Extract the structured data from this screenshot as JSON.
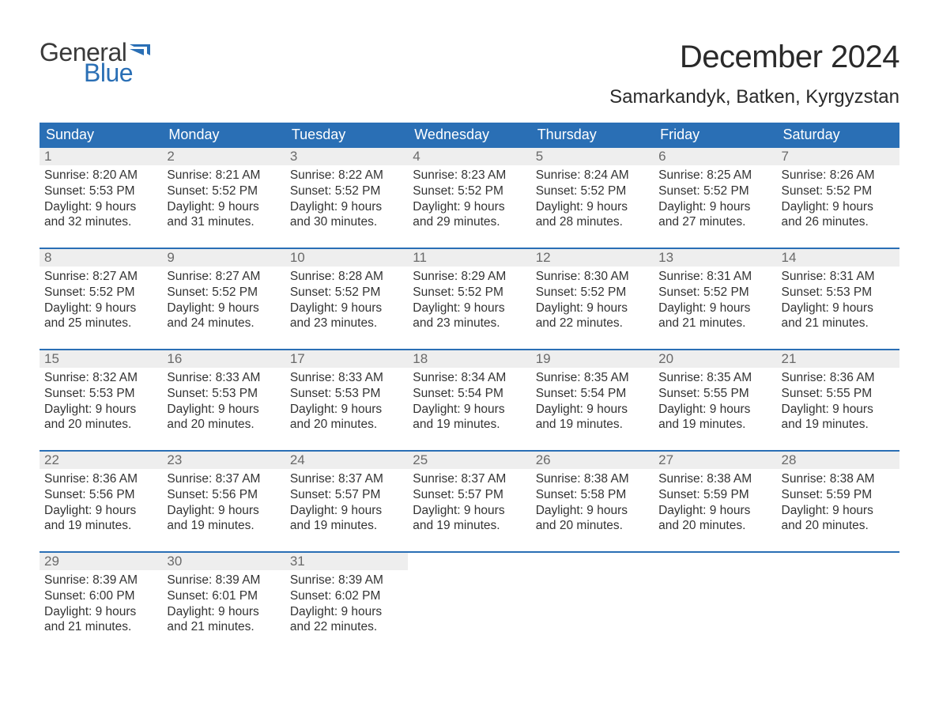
{
  "brand": {
    "general": "General",
    "blue": "Blue",
    "flag_color": "#2a6fb5"
  },
  "title": "December 2024",
  "location": "Samarkandyk, Batken, Kyrgyzstan",
  "colors": {
    "header_bg": "#2a6fb5",
    "header_text": "#ffffff",
    "daynum_bg": "#eeeeee",
    "daynum_text": "#6a6a6a",
    "body_text": "#333333",
    "week_border": "#2a6fb5",
    "page_bg": "#ffffff"
  },
  "typography": {
    "title_fontsize": 40,
    "location_fontsize": 24,
    "weekday_fontsize": 18,
    "daynum_fontsize": 17,
    "body_fontsize": 15.5,
    "font_family": "Arial"
  },
  "weekdays": [
    "Sunday",
    "Monday",
    "Tuesday",
    "Wednesday",
    "Thursday",
    "Friday",
    "Saturday"
  ],
  "weeks": [
    [
      {
        "n": "1",
        "sunrise": "Sunrise: 8:20 AM",
        "sunset": "Sunset: 5:53 PM",
        "day1": "Daylight: 9 hours",
        "day2": "and 32 minutes."
      },
      {
        "n": "2",
        "sunrise": "Sunrise: 8:21 AM",
        "sunset": "Sunset: 5:52 PM",
        "day1": "Daylight: 9 hours",
        "day2": "and 31 minutes."
      },
      {
        "n": "3",
        "sunrise": "Sunrise: 8:22 AM",
        "sunset": "Sunset: 5:52 PM",
        "day1": "Daylight: 9 hours",
        "day2": "and 30 minutes."
      },
      {
        "n": "4",
        "sunrise": "Sunrise: 8:23 AM",
        "sunset": "Sunset: 5:52 PM",
        "day1": "Daylight: 9 hours",
        "day2": "and 29 minutes."
      },
      {
        "n": "5",
        "sunrise": "Sunrise: 8:24 AM",
        "sunset": "Sunset: 5:52 PM",
        "day1": "Daylight: 9 hours",
        "day2": "and 28 minutes."
      },
      {
        "n": "6",
        "sunrise": "Sunrise: 8:25 AM",
        "sunset": "Sunset: 5:52 PM",
        "day1": "Daylight: 9 hours",
        "day2": "and 27 minutes."
      },
      {
        "n": "7",
        "sunrise": "Sunrise: 8:26 AM",
        "sunset": "Sunset: 5:52 PM",
        "day1": "Daylight: 9 hours",
        "day2": "and 26 minutes."
      }
    ],
    [
      {
        "n": "8",
        "sunrise": "Sunrise: 8:27 AM",
        "sunset": "Sunset: 5:52 PM",
        "day1": "Daylight: 9 hours",
        "day2": "and 25 minutes."
      },
      {
        "n": "9",
        "sunrise": "Sunrise: 8:27 AM",
        "sunset": "Sunset: 5:52 PM",
        "day1": "Daylight: 9 hours",
        "day2": "and 24 minutes."
      },
      {
        "n": "10",
        "sunrise": "Sunrise: 8:28 AM",
        "sunset": "Sunset: 5:52 PM",
        "day1": "Daylight: 9 hours",
        "day2": "and 23 minutes."
      },
      {
        "n": "11",
        "sunrise": "Sunrise: 8:29 AM",
        "sunset": "Sunset: 5:52 PM",
        "day1": "Daylight: 9 hours",
        "day2": "and 23 minutes."
      },
      {
        "n": "12",
        "sunrise": "Sunrise: 8:30 AM",
        "sunset": "Sunset: 5:52 PM",
        "day1": "Daylight: 9 hours",
        "day2": "and 22 minutes."
      },
      {
        "n": "13",
        "sunrise": "Sunrise: 8:31 AM",
        "sunset": "Sunset: 5:52 PM",
        "day1": "Daylight: 9 hours",
        "day2": "and 21 minutes."
      },
      {
        "n": "14",
        "sunrise": "Sunrise: 8:31 AM",
        "sunset": "Sunset: 5:53 PM",
        "day1": "Daylight: 9 hours",
        "day2": "and 21 minutes."
      }
    ],
    [
      {
        "n": "15",
        "sunrise": "Sunrise: 8:32 AM",
        "sunset": "Sunset: 5:53 PM",
        "day1": "Daylight: 9 hours",
        "day2": "and 20 minutes."
      },
      {
        "n": "16",
        "sunrise": "Sunrise: 8:33 AM",
        "sunset": "Sunset: 5:53 PM",
        "day1": "Daylight: 9 hours",
        "day2": "and 20 minutes."
      },
      {
        "n": "17",
        "sunrise": "Sunrise: 8:33 AM",
        "sunset": "Sunset: 5:53 PM",
        "day1": "Daylight: 9 hours",
        "day2": "and 20 minutes."
      },
      {
        "n": "18",
        "sunrise": "Sunrise: 8:34 AM",
        "sunset": "Sunset: 5:54 PM",
        "day1": "Daylight: 9 hours",
        "day2": "and 19 minutes."
      },
      {
        "n": "19",
        "sunrise": "Sunrise: 8:35 AM",
        "sunset": "Sunset: 5:54 PM",
        "day1": "Daylight: 9 hours",
        "day2": "and 19 minutes."
      },
      {
        "n": "20",
        "sunrise": "Sunrise: 8:35 AM",
        "sunset": "Sunset: 5:55 PM",
        "day1": "Daylight: 9 hours",
        "day2": "and 19 minutes."
      },
      {
        "n": "21",
        "sunrise": "Sunrise: 8:36 AM",
        "sunset": "Sunset: 5:55 PM",
        "day1": "Daylight: 9 hours",
        "day2": "and 19 minutes."
      }
    ],
    [
      {
        "n": "22",
        "sunrise": "Sunrise: 8:36 AM",
        "sunset": "Sunset: 5:56 PM",
        "day1": "Daylight: 9 hours",
        "day2": "and 19 minutes."
      },
      {
        "n": "23",
        "sunrise": "Sunrise: 8:37 AM",
        "sunset": "Sunset: 5:56 PM",
        "day1": "Daylight: 9 hours",
        "day2": "and 19 minutes."
      },
      {
        "n": "24",
        "sunrise": "Sunrise: 8:37 AM",
        "sunset": "Sunset: 5:57 PM",
        "day1": "Daylight: 9 hours",
        "day2": "and 19 minutes."
      },
      {
        "n": "25",
        "sunrise": "Sunrise: 8:37 AM",
        "sunset": "Sunset: 5:57 PM",
        "day1": "Daylight: 9 hours",
        "day2": "and 19 minutes."
      },
      {
        "n": "26",
        "sunrise": "Sunrise: 8:38 AM",
        "sunset": "Sunset: 5:58 PM",
        "day1": "Daylight: 9 hours",
        "day2": "and 20 minutes."
      },
      {
        "n": "27",
        "sunrise": "Sunrise: 8:38 AM",
        "sunset": "Sunset: 5:59 PM",
        "day1": "Daylight: 9 hours",
        "day2": "and 20 minutes."
      },
      {
        "n": "28",
        "sunrise": "Sunrise: 8:38 AM",
        "sunset": "Sunset: 5:59 PM",
        "day1": "Daylight: 9 hours",
        "day2": "and 20 minutes."
      }
    ],
    [
      {
        "n": "29",
        "sunrise": "Sunrise: 8:39 AM",
        "sunset": "Sunset: 6:00 PM",
        "day1": "Daylight: 9 hours",
        "day2": "and 21 minutes."
      },
      {
        "n": "30",
        "sunrise": "Sunrise: 8:39 AM",
        "sunset": "Sunset: 6:01 PM",
        "day1": "Daylight: 9 hours",
        "day2": "and 21 minutes."
      },
      {
        "n": "31",
        "sunrise": "Sunrise: 8:39 AM",
        "sunset": "Sunset: 6:02 PM",
        "day1": "Daylight: 9 hours",
        "day2": "and 22 minutes."
      },
      null,
      null,
      null,
      null
    ]
  ]
}
